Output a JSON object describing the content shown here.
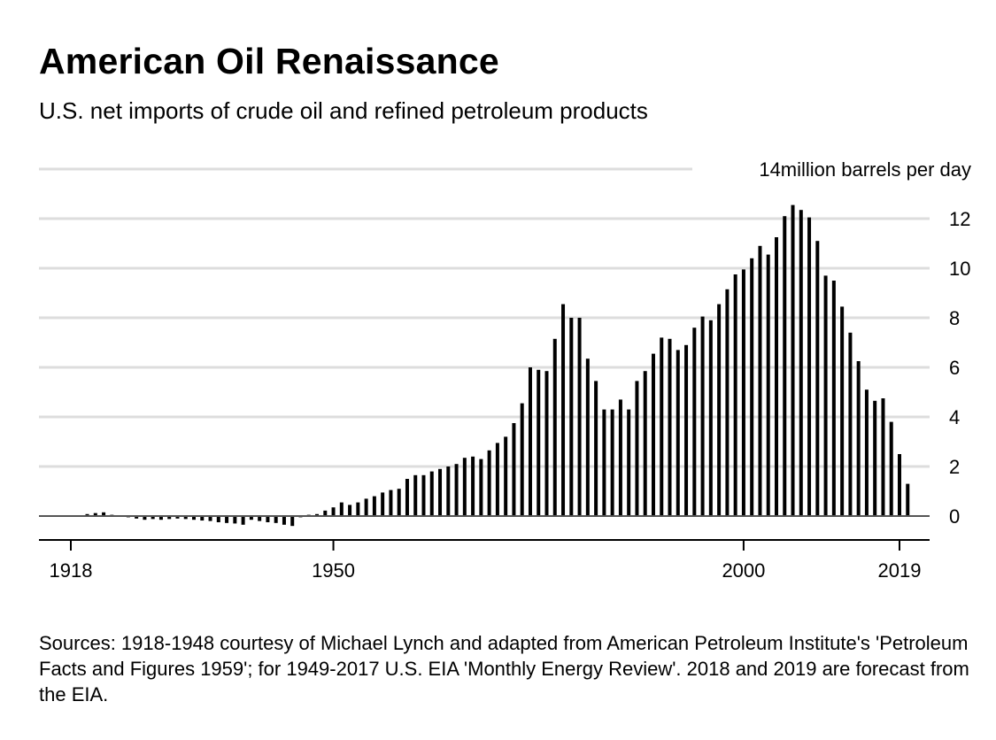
{
  "header": {
    "title": "American Oil Renaissance",
    "subtitle": "U.S. net imports of crude oil and refined petroleum products"
  },
  "footer": {
    "source": "Sources: 1918-1948 courtesy of Michael Lynch and adapted from American Petroleum Institute's 'Petroleum Facts and Figures 1959'; for 1949-2017 U.S. EIA 'Monthly Energy Review'. 2018 and 2019 are forecast from the EIA."
  },
  "colors": {
    "bar": "#000000",
    "grid": "#dddddd",
    "axis": "#555555",
    "text": "#000000"
  },
  "chart_data": {
    "type": "bar",
    "title": "American Oil Renaissance",
    "subtitle": "U.S. net imports of crude oil and refined petroleum products",
    "ylabel": "14million barrels per day",
    "unit_label": "14million barrels per day",
    "ylim": [
      -0.3,
      14
    ],
    "yticks": [
      0,
      2,
      4,
      6,
      8,
      10,
      12
    ],
    "yticks_labels": [
      "0",
      "2",
      "4",
      "6",
      "8",
      "10",
      "12"
    ],
    "xticks": [
      "1918",
      "1950",
      "2000",
      "2019"
    ],
    "xlim": [
      1918,
      2019
    ],
    "grid": true,
    "x_start": 1918,
    "x_end": 2019,
    "values": [
      0.02,
      0.03,
      0.08,
      0.12,
      0.15,
      0.05,
      0.03,
      -0.05,
      -0.1,
      -0.15,
      -0.12,
      -0.15,
      -0.12,
      -0.1,
      -0.12,
      -0.15,
      -0.18,
      -0.2,
      -0.25,
      -0.28,
      -0.3,
      -0.35,
      -0.15,
      -0.2,
      -0.25,
      -0.28,
      -0.35,
      -0.4,
      -0.05,
      0.05,
      0.08,
      0.22,
      0.35,
      0.55,
      0.45,
      0.55,
      0.7,
      0.8,
      0.95,
      1.05,
      1.1,
      1.5,
      1.65,
      1.65,
      1.8,
      1.9,
      2.0,
      2.1,
      2.35,
      2.4,
      2.3,
      2.65,
      2.95,
      3.2,
      3.75,
      4.55,
      6.0,
      5.9,
      5.85,
      7.15,
      8.55,
      8.0,
      8.0,
      6.35,
      5.45,
      4.3,
      4.3,
      4.7,
      4.3,
      5.45,
      5.85,
      6.55,
      7.2,
      7.15,
      6.7,
      6.9,
      7.6,
      8.05,
      7.9,
      8.55,
      9.15,
      9.75,
      9.95,
      10.4,
      10.9,
      10.55,
      11.25,
      12.1,
      12.55,
      12.35,
      12.05,
      11.1,
      9.7,
      9.5,
      8.45,
      7.4,
      6.25,
      5.1,
      4.65,
      4.75,
      3.8,
      2.5,
      1.3
    ]
  }
}
